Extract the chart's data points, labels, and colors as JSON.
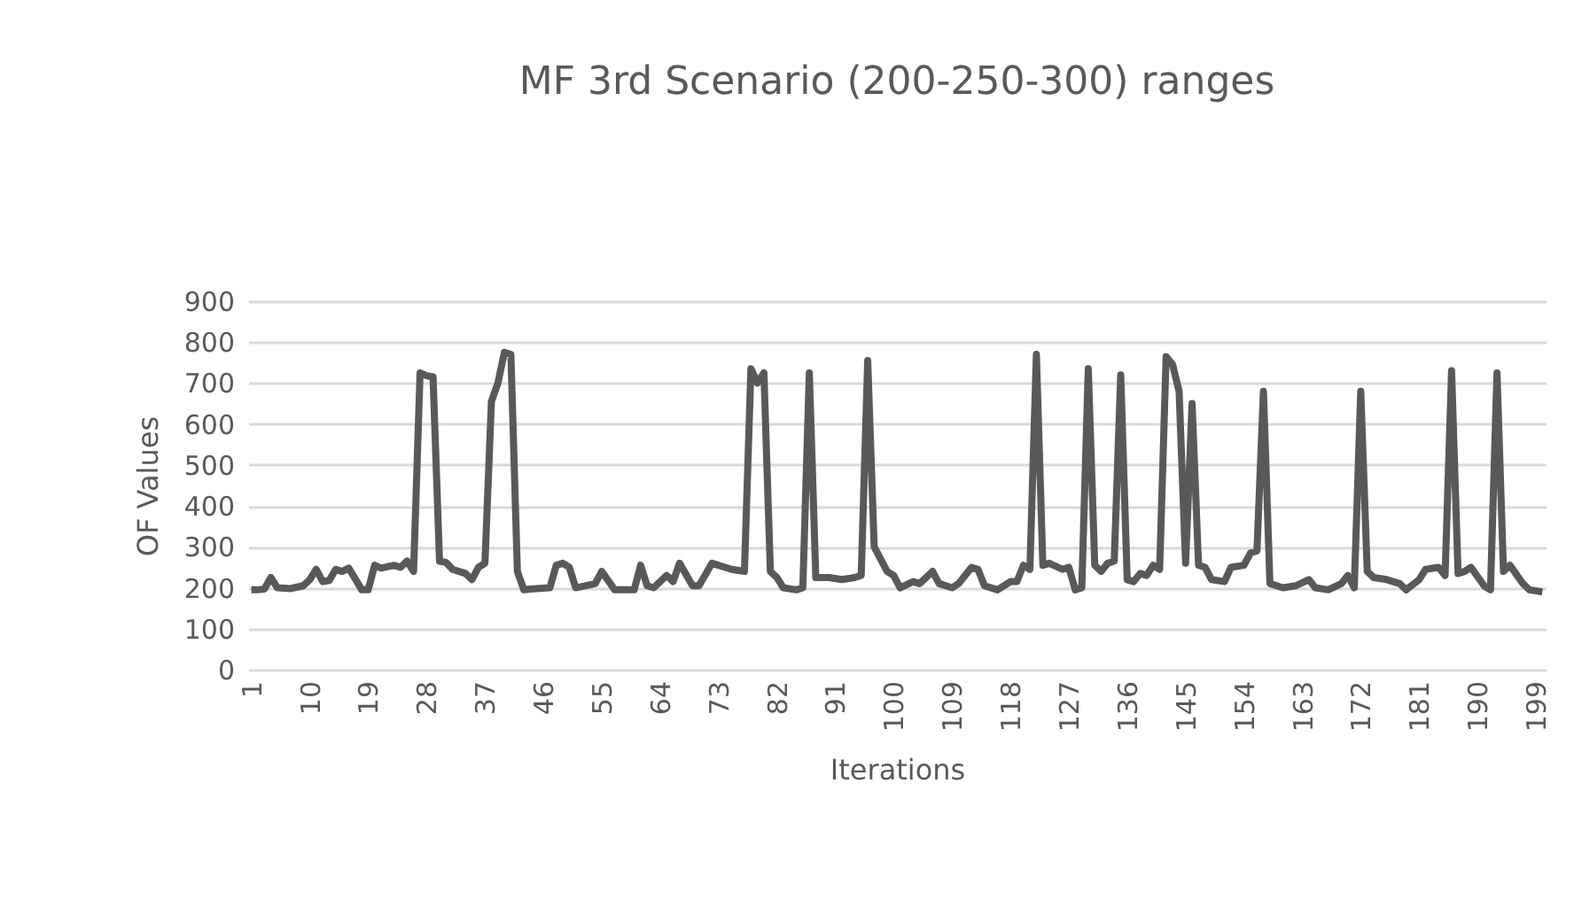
{
  "chart_data": {
    "type": "line",
    "title": "MF 3rd Scenario (200-250-300) ranges",
    "xlabel": "Iterations",
    "ylabel": "OF Values",
    "x": [
      1,
      2,
      3,
      4,
      5,
      7,
      9,
      10,
      11,
      12,
      13,
      14,
      15,
      16,
      17,
      18,
      19,
      20,
      21,
      23,
      24,
      25,
      26,
      27,
      28,
      29,
      30,
      31,
      32,
      34,
      35,
      36,
      37,
      38,
      39,
      40,
      41,
      42,
      43,
      44,
      47,
      48,
      49,
      50,
      51,
      54,
      55,
      57,
      60,
      61,
      62,
      63,
      65,
      66,
      67,
      69,
      70,
      72,
      75,
      77,
      78,
      79,
      80,
      81,
      82,
      83,
      85,
      86,
      87,
      88,
      90,
      92,
      94,
      95,
      96,
      97,
      99,
      100,
      101,
      103,
      104,
      106,
      107,
      109,
      110,
      112,
      113,
      114,
      116,
      118,
      119,
      120,
      121,
      122,
      123,
      124,
      126,
      127,
      128,
      129,
      130,
      131,
      132,
      133,
      134,
      135,
      136,
      137,
      138,
      139,
      140,
      141,
      142,
      143,
      144,
      145,
      146,
      147,
      148,
      149,
      151,
      152,
      154,
      155,
      156,
      157,
      158,
      160,
      162,
      164,
      165,
      167,
      169,
      170,
      171,
      172,
      173,
      174,
      176,
      178,
      179,
      181,
      182,
      184,
      185,
      186,
      187,
      188,
      189,
      191,
      192,
      193,
      194,
      195,
      197,
      198,
      200
    ],
    "series": [
      {
        "color": "#595959",
        "values": [
          195,
          195,
          197,
          225,
          200,
          198,
          205,
          220,
          245,
          215,
          218,
          245,
          240,
          248,
          222,
          195,
          195,
          255,
          248,
          255,
          250,
          265,
          240,
          725,
          718,
          715,
          265,
          262,
          245,
          235,
          220,
          250,
          260,
          655,
          700,
          775,
          770,
          240,
          195,
          197,
          200,
          255,
          260,
          250,
          200,
          210,
          240,
          195,
          195,
          255,
          205,
          200,
          230,
          215,
          260,
          205,
          205,
          260,
          245,
          240,
          735,
          700,
          725,
          240,
          225,
          200,
          195,
          200,
          725,
          225,
          225,
          220,
          225,
          230,
          755,
          300,
          240,
          230,
          200,
          215,
          210,
          240,
          210,
          200,
          210,
          250,
          245,
          205,
          195,
          215,
          215,
          255,
          245,
          770,
          255,
          260,
          245,
          250,
          195,
          200,
          735,
          255,
          240,
          260,
          265,
          720,
          220,
          215,
          235,
          230,
          255,
          245,
          765,
          745,
          680,
          260,
          650,
          255,
          250,
          220,
          215,
          250,
          255,
          285,
          290,
          680,
          210,
          200,
          205,
          220,
          200,
          195,
          210,
          230,
          200,
          680,
          240,
          225,
          220,
          210,
          195,
          220,
          245,
          250,
          230,
          730,
          235,
          240,
          250,
          205,
          195,
          725,
          240,
          255,
          210,
          195,
          190
        ]
      }
    ],
    "xlim": [
      0.5,
      200.5
    ],
    "xticks": [
      1,
      10,
      19,
      28,
      37,
      46,
      55,
      64,
      73,
      82,
      91,
      100,
      109,
      118,
      127,
      136,
      145,
      154,
      163,
      172,
      181,
      190,
      199
    ],
    "ylim": [
      0,
      900
    ],
    "yticks": [
      0,
      100,
      200,
      300,
      400,
      500,
      600,
      700,
      800,
      900
    ],
    "grid": "y",
    "marker": "none",
    "line_style": "solid"
  }
}
